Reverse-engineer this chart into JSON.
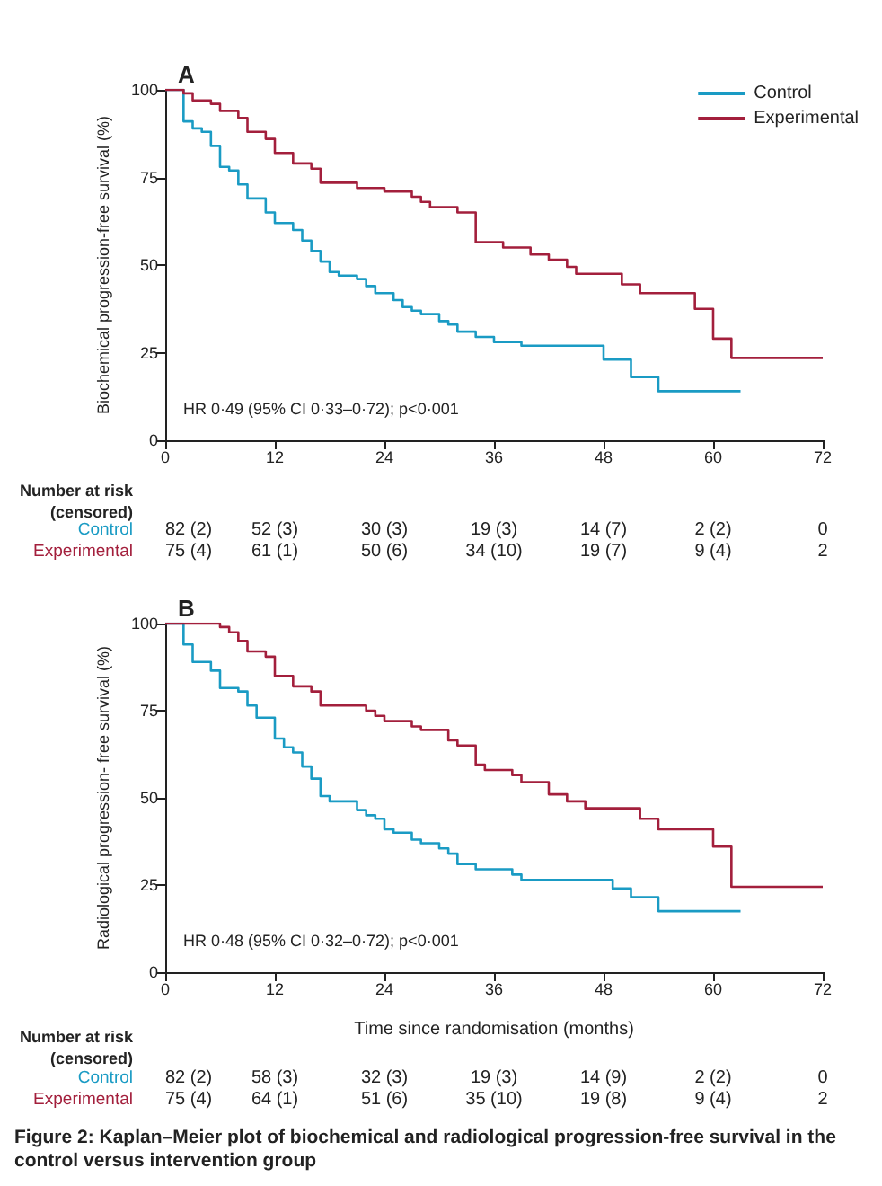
{
  "chart_data": [
    {
      "type": "step",
      "title": "A",
      "ylabel": "Biochemical progression-free survival (%)",
      "legend": "top right",
      "xlim": [
        0,
        72
      ],
      "xticks": [
        0,
        12,
        24,
        36,
        48,
        60,
        72
      ],
      "ylim": [
        0,
        100
      ],
      "yticks": [
        0,
        25,
        50,
        75,
        100
      ],
      "series": [
        {
          "name": "Control",
          "color": "#1a9bc4",
          "x": [
            0,
            2,
            3,
            4,
            5,
            6,
            7,
            8,
            9,
            11,
            12,
            14,
            15,
            16,
            17,
            18,
            19,
            21,
            22,
            23,
            25,
            26,
            27,
            28,
            30,
            31,
            32,
            34,
            36,
            39,
            48,
            51,
            54,
            63
          ],
          "values": [
            100,
            91,
            89,
            88,
            84,
            78,
            77,
            73,
            69,
            65,
            62,
            60,
            57,
            54,
            51,
            48,
            47,
            46,
            44,
            42,
            40,
            38,
            37,
            36,
            34,
            33,
            31,
            29.5,
            28,
            27,
            23,
            18,
            14,
            14
          ]
        },
        {
          "name": "Experimental",
          "color": "#a31f3c",
          "x": [
            0,
            2,
            3,
            5,
            6,
            8,
            9,
            11,
            12,
            14,
            16,
            17,
            21,
            24,
            27,
            28,
            29,
            32,
            34,
            37,
            40,
            42,
            44,
            45,
            50,
            52,
            58,
            60,
            62,
            72
          ],
          "values": [
            100,
            99,
            97,
            96,
            94,
            92,
            88,
            86,
            82,
            79,
            77.5,
            73.5,
            72,
            71,
            69.5,
            68,
            66.5,
            65,
            56.5,
            55,
            53,
            51.5,
            49.5,
            47.5,
            44.5,
            42,
            37.5,
            29,
            23.5,
            23.5
          ]
        }
      ],
      "annotations": [
        "HR 0·49 (95% CI 0·33–0·72); p<0·001",
        "Number at risk\n(censored)",
        "82 (2)",
        "52 (3)",
        "30 (3)",
        "19 (3)",
        "14 (7)",
        "2 (2)",
        "0",
        "75 (4)",
        "61 (1)",
        "50 (6)",
        "34 (10)",
        "19 (7)",
        "9 (4)",
        "2"
      ]
    },
    {
      "type": "step",
      "title": "B",
      "ylabel": "Radiological progression- free survival (%)",
      "xlabel": "Time since randomisation (months)",
      "legend": false,
      "xlim": [
        0,
        72
      ],
      "xticks": [
        0,
        12,
        24,
        36,
        48,
        60,
        72
      ],
      "ylim": [
        0,
        100
      ],
      "yticks": [
        0,
        25,
        50,
        75,
        100
      ],
      "series": [
        {
          "name": "Control",
          "color": "#1a9bc4",
          "x": [
            0,
            2,
            3,
            5,
            6,
            8,
            9,
            10,
            12,
            13,
            14,
            15,
            16,
            17,
            18,
            21,
            22,
            23,
            24,
            25,
            27,
            28,
            30,
            31,
            32,
            34,
            38,
            39,
            49,
            51,
            54,
            63
          ],
          "values": [
            100,
            94,
            89,
            86.5,
            81.5,
            80.5,
            76.5,
            73,
            67,
            64.5,
            63,
            59,
            55.5,
            50.5,
            49,
            46.5,
            45,
            44,
            41,
            40,
            38,
            37,
            35.5,
            34,
            31,
            29.5,
            28,
            26.5,
            24,
            21.5,
            17.5,
            17.5
          ]
        },
        {
          "name": "Experimental",
          "color": "#a31f3c",
          "x": [
            0,
            6,
            7,
            8,
            9,
            11,
            12,
            14,
            16,
            17,
            22,
            23,
            24,
            27,
            28,
            31,
            32,
            34,
            35,
            38,
            39,
            42,
            44,
            46,
            52,
            54,
            60,
            62,
            72
          ],
          "values": [
            100,
            99,
            97.5,
            95,
            92,
            90.5,
            85,
            82,
            80.5,
            76.5,
            75,
            73.5,
            72,
            70.5,
            69.5,
            66.5,
            65,
            59.5,
            58,
            56.5,
            54.5,
            51,
            49,
            47,
            44,
            41,
            36,
            24.5,
            24.5
          ]
        }
      ],
      "annotations": [
        "HR 0·48 (95% CI 0·32–0·72); p<0·001",
        "Number at risk\n(censored)",
        "82 (2)",
        "58 (3)",
        "32 (3)",
        "19 (3)",
        "14 (9)",
        "2 (2)",
        "0",
        "75 (4)",
        "64 (1)",
        "51 (6)",
        "35 (10)",
        "19 (8)",
        "9 (4)",
        "2",
        "Figure 2: Kaplan–Meier plot of biochemical and radiological progression-free survival in the control versus intervention group"
      ]
    }
  ]
}
